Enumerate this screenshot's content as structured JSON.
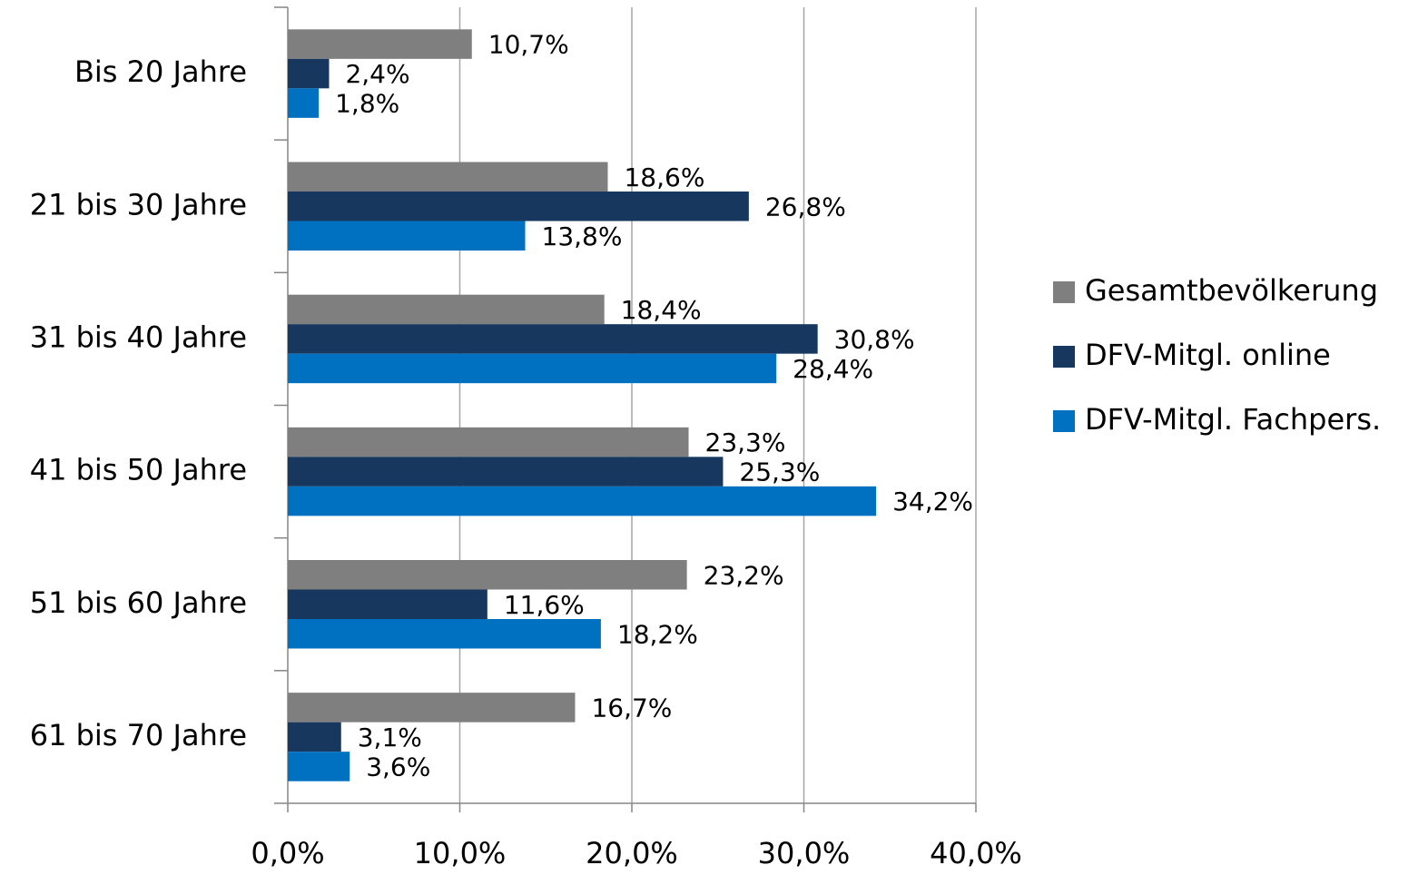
{
  "chart_data": {
    "type": "hbar",
    "categories": [
      "Bis 20 Jahre",
      "21 bis 30 Jahre",
      "31 bis 40 Jahre",
      "41 bis 50 Jahre",
      "51 bis 60 Jahre",
      "61 bis 70 Jahre"
    ],
    "series": [
      {
        "name": "Gesamtbevölkerung",
        "color": "#7f7f7f",
        "values": [
          10.7,
          18.6,
          18.4,
          23.3,
          23.2,
          16.7
        ],
        "value_labels": [
          "10,7%",
          "18,6%",
          "18,4%",
          "23,3%",
          "23,2%",
          "16,7%"
        ]
      },
      {
        "name": "DFV-Mitgl. online",
        "color": "#17375e",
        "values": [
          2.4,
          26.8,
          30.8,
          25.3,
          11.6,
          3.1
        ],
        "value_labels": [
          "2,4%",
          "26,8%",
          "30,8%",
          "25,3%",
          "11,6%",
          "3,1%"
        ]
      },
      {
        "name": "DFV-Mitgl. Fachpers.",
        "color": "#0070c0",
        "values": [
          1.8,
          13.8,
          28.4,
          34.2,
          18.2,
          3.6
        ],
        "value_labels": [
          "1,8%",
          "13,8%",
          "28,4%",
          "34,2%",
          "18,2%",
          "3,6%"
        ]
      }
    ],
    "xlim": [
      0,
      40
    ],
    "xticks": [
      {
        "value": 0,
        "label": "0,0%"
      },
      {
        "value": 10,
        "label": "10,0%"
      },
      {
        "value": 20,
        "label": "20,0%"
      },
      {
        "value": 30,
        "label": "30,0%"
      },
      {
        "value": 40,
        "label": "40,0%"
      }
    ],
    "grid": true,
    "legend": "right"
  }
}
